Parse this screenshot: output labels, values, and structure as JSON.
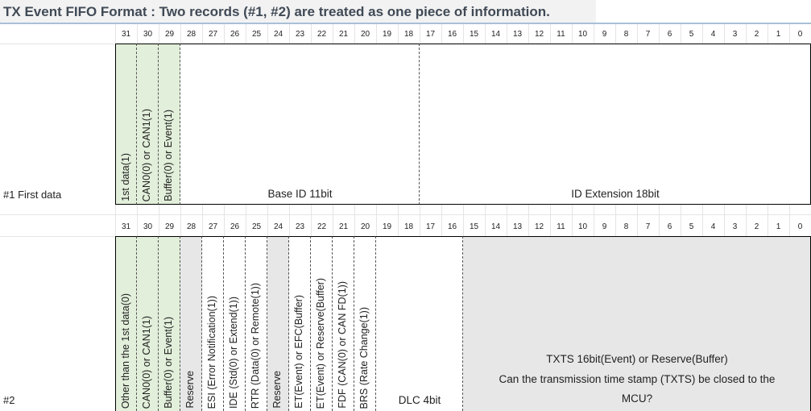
{
  "title": "TX Event FIFO Format :  Two records (#1, #2) are treated as one piece of information.",
  "bits": [
    "31",
    "30",
    "29",
    "28",
    "27",
    "26",
    "25",
    "24",
    "23",
    "22",
    "21",
    "20",
    "19",
    "18",
    "17",
    "16",
    "15",
    "14",
    "13",
    "12",
    "11",
    "10",
    "9",
    "8",
    "7",
    "6",
    "5",
    "4",
    "3",
    "2",
    "1",
    "0"
  ],
  "row1": {
    "label": "#1 First data",
    "fields": [
      "1st data(1)",
      "CAN0(0) or CAN1(1)",
      "Buffer(0) or Event(1)"
    ],
    "base_id": "Base ID 11bit",
    "id_ext": "ID Extension 18bit"
  },
  "row2": {
    "label": "#2",
    "fields": [
      "Other than the 1st data(0)",
      "CAN0(0) or CAN1(1)",
      "Buffer(0) or Event(1)",
      "Reserve",
      "ESI (Error Notification(1))",
      "IDE (Std(0) or Extend(1))",
      "RTR (Data(0) or Remote(1))",
      "Reserve",
      "ET(Event) or EFC(Buffer)",
      "ET(Event) or Reserve(Buffer)",
      "FDF (CAN(0) or CAN FD(1))",
      "BRS (Rate Change(1))"
    ],
    "dlc": "DLC 4bit",
    "txts_line1": "TXTS 16bit(Event) or Reserve(Buffer)",
    "txts_line2": "Can the transmission time stamp (TXTS) be closed to the",
    "txts_line3": "MCU?"
  },
  "colors": {
    "green": "#e2efda",
    "gray": "#e7e7e7",
    "title_line": "#a9c0d8"
  }
}
